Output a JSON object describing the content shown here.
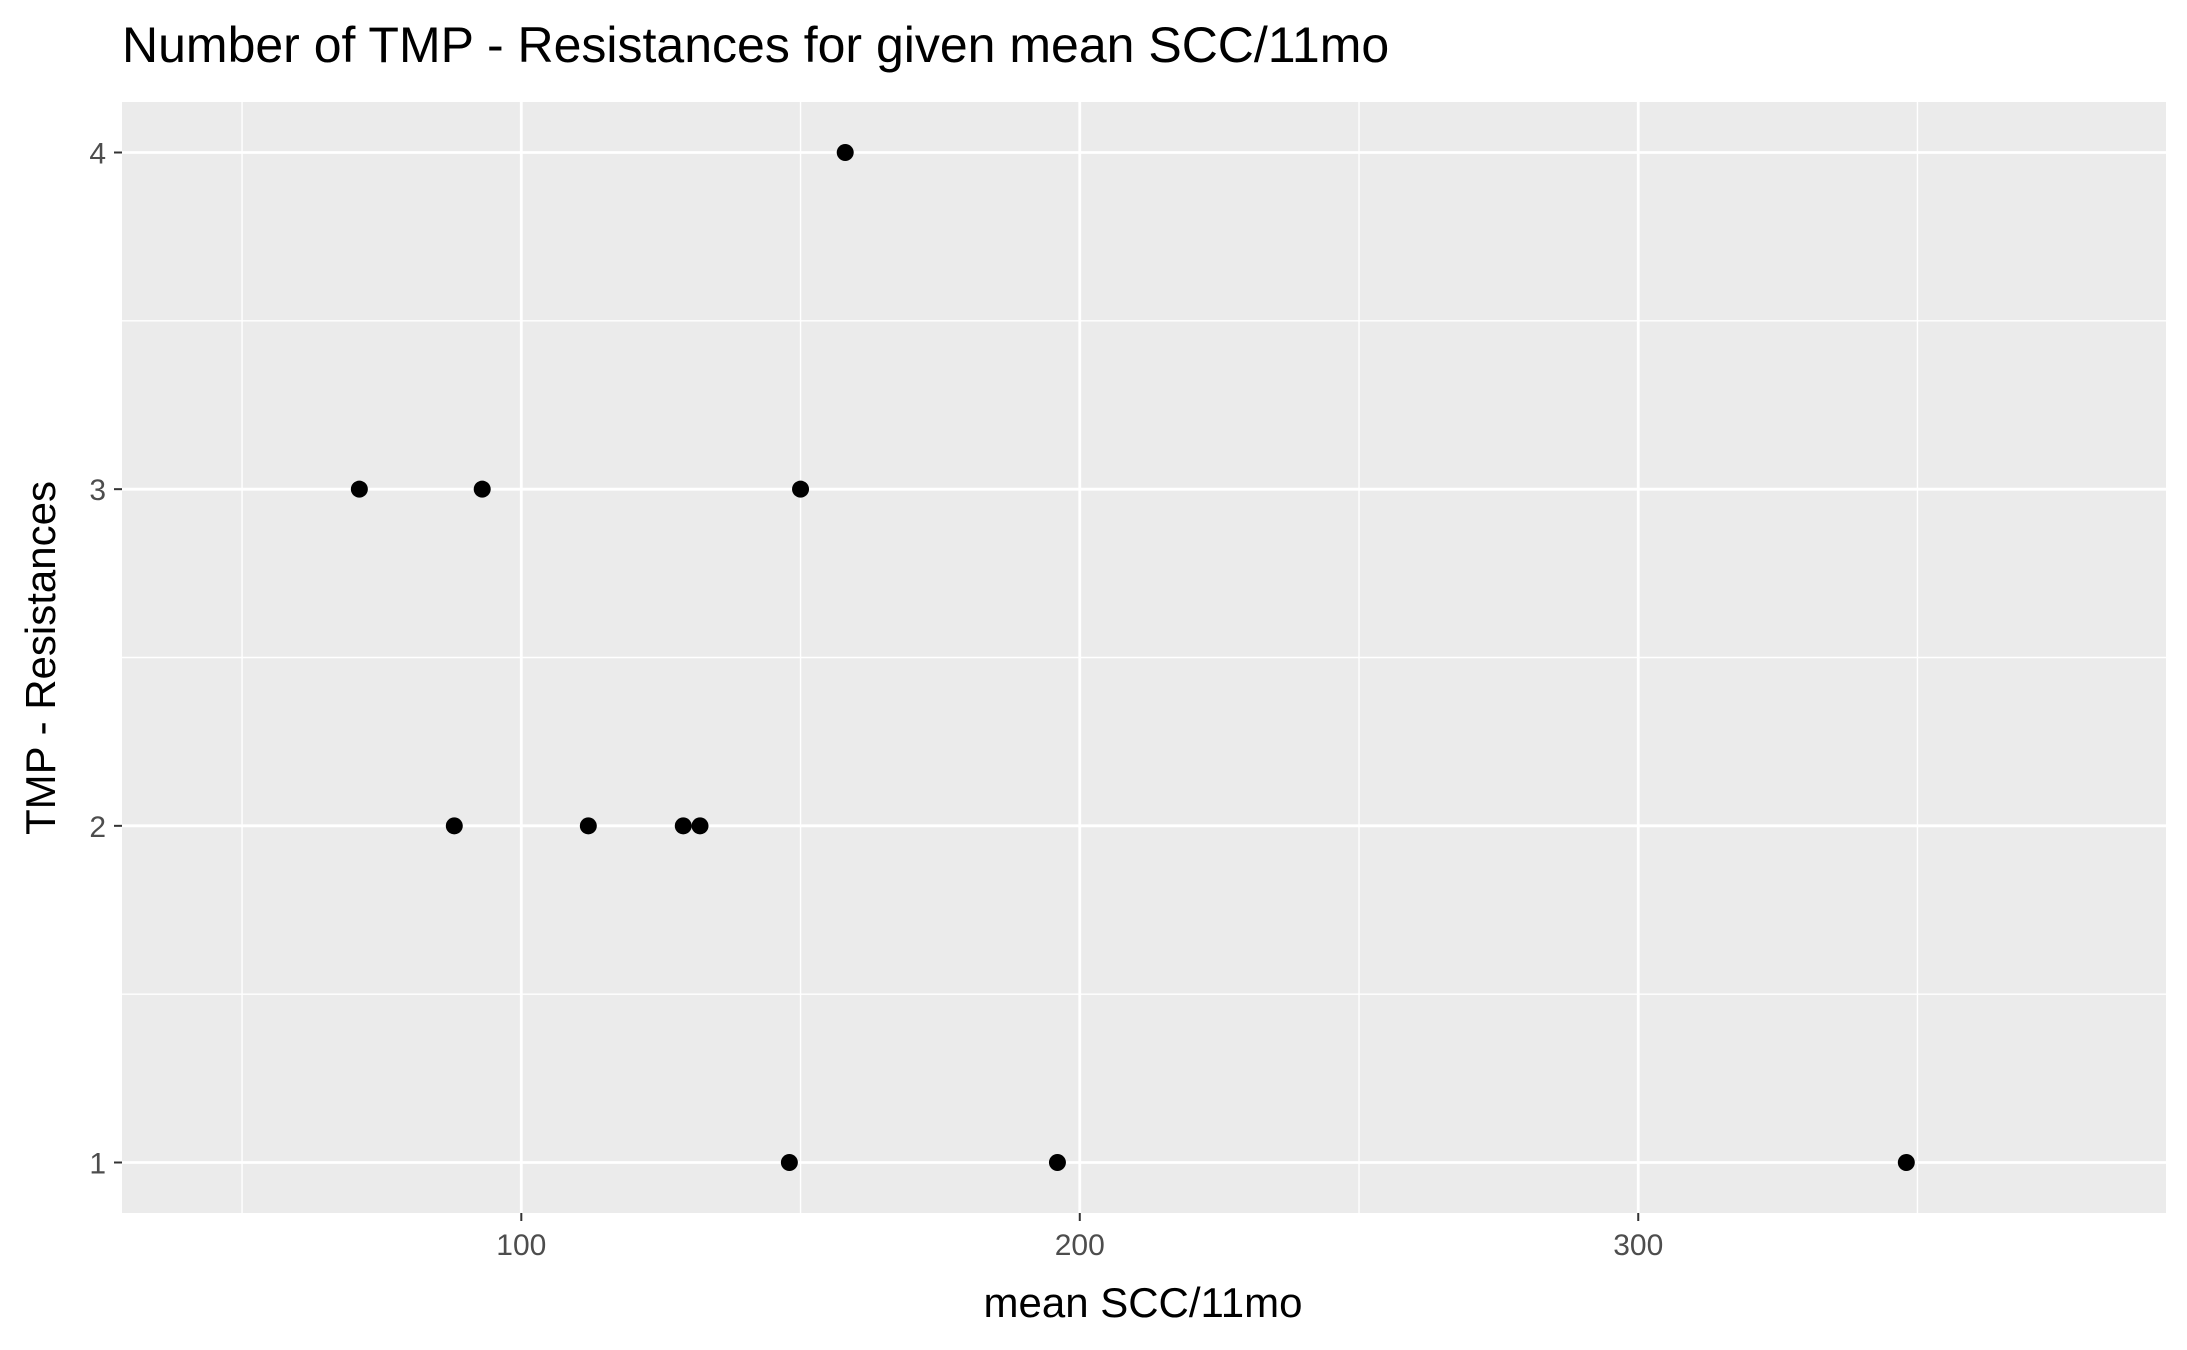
{
  "chart_data": {
    "type": "scatter",
    "title": "Number of TMP - Resistances for given mean SCC/11mo",
    "xlabel": "mean SCC/11mo",
    "ylabel": "TMP - Resistances",
    "xlim": [
      28.5,
      394.5
    ],
    "ylim": [
      0.85,
      4.15
    ],
    "x_ticks": [
      100,
      200,
      300
    ],
    "x_minor_ticks": [
      50,
      150,
      250,
      350
    ],
    "y_ticks": [
      1,
      2,
      3,
      4
    ],
    "y_minor_ticks": [
      1.5,
      2.5,
      3.5
    ],
    "grid": true,
    "legend": "none",
    "colors": {
      "panel": "#ebebeb",
      "grid": "#ffffff",
      "point": "#000000",
      "tick": "#333333",
      "tick_label": "#4d4d4d"
    },
    "points": [
      {
        "x": 71,
        "y": 3
      },
      {
        "x": 93,
        "y": 3
      },
      {
        "x": 150,
        "y": 3
      },
      {
        "x": 158,
        "y": 4
      },
      {
        "x": 88,
        "y": 2
      },
      {
        "x": 112,
        "y": 2
      },
      {
        "x": 129,
        "y": 2
      },
      {
        "x": 132,
        "y": 2
      },
      {
        "x": 148,
        "y": 1
      },
      {
        "x": 196,
        "y": 1
      },
      {
        "x": 348,
        "y": 1
      }
    ]
  }
}
